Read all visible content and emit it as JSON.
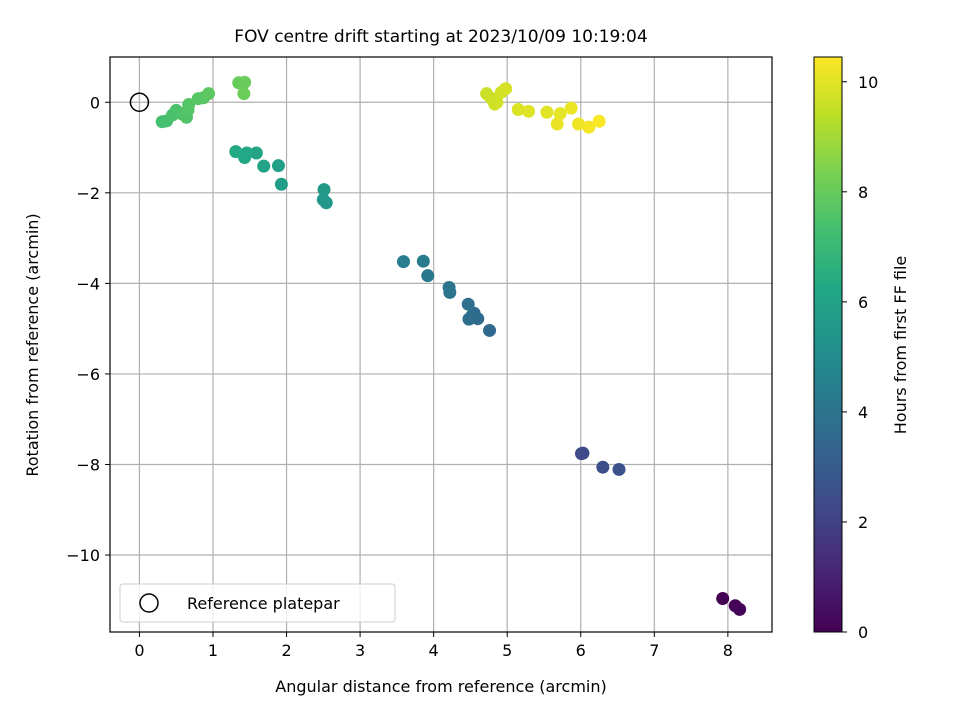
{
  "chart_data": {
    "type": "scatter",
    "title": "FOV centre drift starting at 2023/10/09 10:19:04",
    "xlabel": "Angular distance from reference (arcmin)",
    "ylabel": "Rotation from reference (arcmin)",
    "xlim": [
      -0.4,
      8.6
    ],
    "ylim": [
      -11.7,
      1.0
    ],
    "xticks": [
      0,
      1,
      2,
      3,
      4,
      5,
      6,
      7,
      8
    ],
    "yticks": [
      0,
      -2,
      -4,
      -6,
      -8,
      -10
    ],
    "grid": true,
    "legend": {
      "position": "bottom-left",
      "entries": [
        {
          "label": "Reference platepar",
          "marker": "open-circle"
        }
      ]
    },
    "reference_point": {
      "x": 0,
      "y": 0
    },
    "colorbar": {
      "label": "Hours from first FF file",
      "colormap": "viridis",
      "range": [
        0,
        10.45
      ],
      "ticks": [
        0,
        2,
        4,
        6,
        8,
        10
      ]
    },
    "points": [
      {
        "x": 7.93,
        "y": -10.96,
        "h": 0.0
      },
      {
        "x": 8.1,
        "y": -11.12,
        "h": 0.05
      },
      {
        "x": 8.16,
        "y": -11.2,
        "h": 0.1
      },
      {
        "x": 6.01,
        "y": -7.76,
        "h": 2.3
      },
      {
        "x": 6.03,
        "y": -7.75,
        "h": 2.35
      },
      {
        "x": 6.3,
        "y": -8.06,
        "h": 2.5
      },
      {
        "x": 6.52,
        "y": -8.11,
        "h": 2.6
      },
      {
        "x": 4.76,
        "y": -5.04,
        "h": 3.5
      },
      {
        "x": 4.6,
        "y": -4.78,
        "h": 3.6
      },
      {
        "x": 4.55,
        "y": -4.66,
        "h": 3.65
      },
      {
        "x": 4.48,
        "y": -4.79,
        "h": 3.7
      },
      {
        "x": 4.52,
        "y": -4.72,
        "h": 3.72
      },
      {
        "x": 4.47,
        "y": -4.46,
        "h": 3.8
      },
      {
        "x": 4.21,
        "y": -4.09,
        "h": 4.0
      },
      {
        "x": 4.22,
        "y": -4.2,
        "h": 4.05
      },
      {
        "x": 3.92,
        "y": -3.83,
        "h": 4.2
      },
      {
        "x": 3.86,
        "y": -3.51,
        "h": 4.3
      },
      {
        "x": 3.59,
        "y": -3.52,
        "h": 4.4
      },
      {
        "x": 2.54,
        "y": -2.22,
        "h": 5.5
      },
      {
        "x": 2.5,
        "y": -2.15,
        "h": 5.55
      },
      {
        "x": 2.51,
        "y": -1.93,
        "h": 5.6
      },
      {
        "x": 1.93,
        "y": -1.81,
        "h": 5.8
      },
      {
        "x": 1.89,
        "y": -1.4,
        "h": 5.9
      },
      {
        "x": 1.69,
        "y": -1.41,
        "h": 6.0
      },
      {
        "x": 1.59,
        "y": -1.12,
        "h": 6.1
      },
      {
        "x": 1.43,
        "y": -1.22,
        "h": 6.2
      },
      {
        "x": 1.46,
        "y": -1.12,
        "h": 6.25
      },
      {
        "x": 1.31,
        "y": -1.09,
        "h": 6.3
      },
      {
        "x": 0.31,
        "y": -0.43,
        "h": 7.3
      },
      {
        "x": 0.37,
        "y": -0.41,
        "h": 7.35
      },
      {
        "x": 0.45,
        "y": -0.28,
        "h": 7.4
      },
      {
        "x": 0.5,
        "y": -0.18,
        "h": 7.45
      },
      {
        "x": 0.58,
        "y": -0.26,
        "h": 7.5
      },
      {
        "x": 0.64,
        "y": -0.33,
        "h": 7.55
      },
      {
        "x": 0.66,
        "y": -0.17,
        "h": 7.6
      },
      {
        "x": 0.67,
        "y": -0.05,
        "h": 7.65
      },
      {
        "x": 0.8,
        "y": 0.08,
        "h": 7.7
      },
      {
        "x": 0.87,
        "y": 0.1,
        "h": 7.75
      },
      {
        "x": 0.94,
        "y": 0.19,
        "h": 7.8
      },
      {
        "x": 1.35,
        "y": 0.43,
        "h": 8.0
      },
      {
        "x": 1.43,
        "y": 0.44,
        "h": 8.05
      },
      {
        "x": 1.42,
        "y": 0.19,
        "h": 8.1
      },
      {
        "x": 4.72,
        "y": 0.19,
        "h": 9.6
      },
      {
        "x": 4.78,
        "y": 0.09,
        "h": 9.65
      },
      {
        "x": 4.83,
        "y": -0.04,
        "h": 9.7
      },
      {
        "x": 4.86,
        "y": 0.0,
        "h": 9.72
      },
      {
        "x": 4.92,
        "y": 0.22,
        "h": 9.75
      },
      {
        "x": 4.98,
        "y": 0.3,
        "h": 9.8
      },
      {
        "x": 5.15,
        "y": -0.16,
        "h": 9.9
      },
      {
        "x": 5.29,
        "y": -0.2,
        "h": 9.95
      },
      {
        "x": 5.54,
        "y": -0.22,
        "h": 10.0
      },
      {
        "x": 5.72,
        "y": -0.25,
        "h": 10.05
      },
      {
        "x": 5.68,
        "y": -0.48,
        "h": 10.1
      },
      {
        "x": 5.87,
        "y": -0.13,
        "h": 10.15
      },
      {
        "x": 5.97,
        "y": -0.48,
        "h": 10.2
      },
      {
        "x": 6.11,
        "y": -0.55,
        "h": 10.3
      },
      {
        "x": 6.25,
        "y": -0.42,
        "h": 10.4
      }
    ]
  }
}
